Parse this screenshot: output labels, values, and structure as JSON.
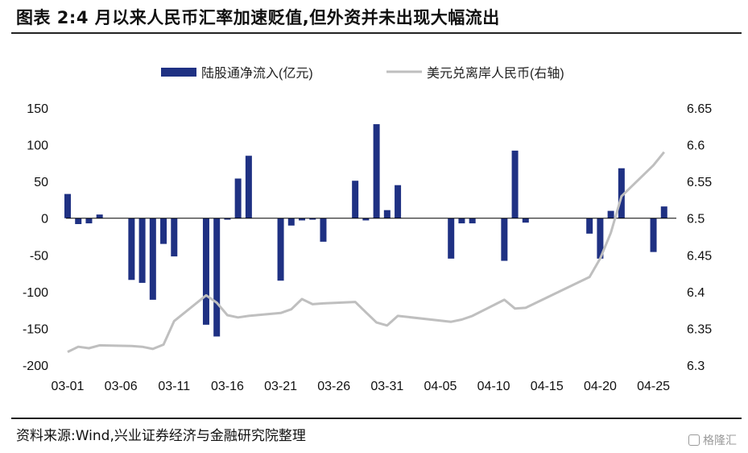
{
  "title": "图表 2:4 月以来人民币汇率加速贬值,但外资并未出现大幅流出",
  "source": "资料来源:Wind,兴业证券经济与金融研究院整理",
  "watermark": "格隆汇",
  "colors": {
    "bar": "#1f3183",
    "line": "#bfbfbf",
    "axis": "#000000"
  },
  "chart_data": {
    "type": "bar+line",
    "legend": [
      "陆股通净流入(亿元)",
      "美元兑离岸人民币(右轴)"
    ],
    "legend_position": "top",
    "grid": false,
    "x_ticks": [
      "03-01",
      "03-06",
      "03-11",
      "03-16",
      "03-21",
      "03-26",
      "03-31",
      "04-05",
      "04-10",
      "04-15",
      "04-20",
      "04-25"
    ],
    "y_left": {
      "min": -200,
      "max": 150,
      "ticks": [
        150,
        100,
        50,
        0,
        -50,
        -100,
        -150,
        -200
      ]
    },
    "y_right": {
      "min": 6.3,
      "max": 6.65,
      "ticks": [
        "6.65",
        "6.6",
        "6.55",
        "6.5",
        "6.45",
        "6.4",
        "6.35",
        "6.3"
      ]
    },
    "series": [
      {
        "name": "陆股通净流入(亿元)",
        "type": "bar",
        "axis": "left",
        "points": [
          [
            "03-01",
            33
          ],
          [
            "03-02",
            -8
          ],
          [
            "03-03",
            -7
          ],
          [
            "03-04",
            5
          ],
          [
            "03-07",
            -84
          ],
          [
            "03-08",
            -88
          ],
          [
            "03-09",
            -111
          ],
          [
            "03-10",
            -35
          ],
          [
            "03-11",
            -52
          ],
          [
            "03-14",
            -145
          ],
          [
            "03-15",
            -161
          ],
          [
            "03-16",
            -2
          ],
          [
            "03-17",
            54
          ],
          [
            "03-18",
            85
          ],
          [
            "03-21",
            -85
          ],
          [
            "03-22",
            -10
          ],
          [
            "03-23",
            -3
          ],
          [
            "03-24",
            -2
          ],
          [
            "03-25",
            -32
          ],
          [
            "03-28",
            51
          ],
          [
            "03-29",
            -3
          ],
          [
            "03-30",
            128
          ],
          [
            "03-31",
            11
          ],
          [
            "04-01",
            45
          ],
          [
            "04-06",
            -55
          ],
          [
            "04-07",
            -7
          ],
          [
            "04-08",
            -7
          ],
          [
            "04-11",
            -58
          ],
          [
            "04-12",
            92
          ],
          [
            "04-13",
            -6
          ],
          [
            "04-19",
            -21
          ],
          [
            "04-20",
            -55
          ],
          [
            "04-21",
            10
          ],
          [
            "04-22",
            68
          ],
          [
            "04-25",
            -46
          ],
          [
            "04-26",
            16
          ]
        ]
      },
      {
        "name": "美元兑离岸人民币(右轴)",
        "type": "line",
        "axis": "right",
        "points": [
          [
            "03-01",
            6.318
          ],
          [
            "03-02",
            6.325
          ],
          [
            "03-03",
            6.323
          ],
          [
            "03-04",
            6.327
          ],
          [
            "03-07",
            6.326
          ],
          [
            "03-08",
            6.325
          ],
          [
            "03-09",
            6.322
          ],
          [
            "03-10",
            6.328
          ],
          [
            "03-11",
            6.36
          ],
          [
            "03-14",
            6.395
          ],
          [
            "03-15",
            6.385
          ],
          [
            "03-16",
            6.368
          ],
          [
            "03-17",
            6.365
          ],
          [
            "03-18",
            6.367
          ],
          [
            "03-21",
            6.371
          ],
          [
            "03-22",
            6.376
          ],
          [
            "03-23",
            6.39
          ],
          [
            "03-24",
            6.383
          ],
          [
            "03-25",
            6.384
          ],
          [
            "03-28",
            6.386
          ],
          [
            "03-29",
            6.372
          ],
          [
            "03-30",
            6.358
          ],
          [
            "03-31",
            6.354
          ],
          [
            "04-01",
            6.367
          ],
          [
            "04-06",
            6.359
          ],
          [
            "04-07",
            6.362
          ],
          [
            "04-08",
            6.367
          ],
          [
            "04-11",
            6.389
          ],
          [
            "04-12",
            6.377
          ],
          [
            "04-13",
            6.378
          ],
          [
            "04-19",
            6.42
          ],
          [
            "04-20",
            6.445
          ],
          [
            "04-21",
            6.48
          ],
          [
            "04-22",
            6.53
          ],
          [
            "04-25",
            6.572
          ],
          [
            "04-26",
            6.59
          ]
        ]
      }
    ]
  }
}
